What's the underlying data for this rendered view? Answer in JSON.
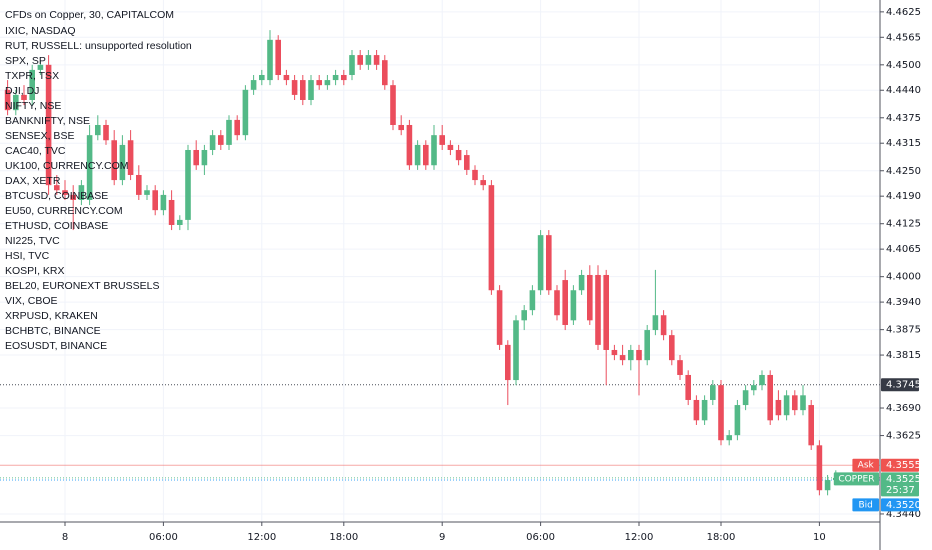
{
  "chart_data": {
    "type": "candlestick",
    "title": "CFDs on Copper, 30, CAPITALCOM",
    "symbols": [
      "IXIC, NASDAQ",
      "RUT, RUSSELL: unsupported resolution",
      "SPX, SP",
      "TXPR, TSX",
      "DJI, DJ",
      "NIFTY, NSE",
      "BANKNIFTY, NSE",
      "SENSEX, BSE",
      "CAC40, TVC",
      "UK100, CURRENCY.COM",
      "DAX, XETR",
      "BTCUSD, COINBASE",
      "EU50, CURRENCY.COM",
      "ETHUSD, COINBASE",
      "NI225, TVC",
      "HSI, TVC",
      "KOSPI, KRX",
      "BEL20, EURONEXT BRUSSELS",
      "VIX, CBOE",
      "XRPUSD, KRAKEN",
      "BCHBTC, BINANCE",
      "EOSUSDT, BINANCE"
    ],
    "categories": [
      null,
      null,
      null,
      null,
      null,
      null,
      null,
      "8",
      null,
      null,
      null,
      null,
      null,
      null,
      null,
      null,
      null,
      null,
      null,
      "06:00",
      null,
      null,
      null,
      null,
      null,
      null,
      null,
      null,
      null,
      null,
      null,
      "12:00",
      null,
      null,
      null,
      null,
      null,
      null,
      null,
      null,
      null,
      "18:00",
      null,
      null,
      null,
      null,
      null,
      null,
      null,
      null,
      null,
      null,
      null,
      "9",
      null,
      null,
      null,
      null,
      null,
      null,
      null,
      null,
      null,
      null,
      null,
      "06:00",
      null,
      null,
      null,
      null,
      null,
      null,
      null,
      null,
      null,
      null,
      null,
      "12:00",
      null,
      null,
      null,
      null,
      null,
      null,
      null,
      null,
      null,
      "18:00",
      null,
      null,
      null,
      null,
      null,
      null,
      null,
      null,
      null,
      null,
      null,
      "10",
      null,
      null
    ],
    "open": [
      4.4441,
      4.4393,
      4.4429,
      4.4417,
      4.4488,
      4.45,
      4.4216,
      4.4204,
      4.4193,
      4.4181,
      4.4181,
      4.4334,
      4.4358,
      4.4322,
      4.4228,
      4.4322,
      4.424,
      4.4193,
      4.4204,
      4.4157,
      4.4181,
      4.4122,
      4.4134,
      4.4299,
      4.4263,
      4.4299,
      4.4334,
      4.4311,
      4.437,
      4.4334,
      4.4441,
      4.4464,
      4.4464,
      4.4559,
      4.4476,
      4.4464,
      4.4464,
      4.4417,
      4.4464,
      4.4452,
      4.4464,
      4.4476,
      4.4476,
      4.4523,
      4.45,
      4.4523,
      4.4511,
      4.4452,
      4.4358,
      4.4358,
      4.4263,
      4.4311,
      4.4263,
      4.4334,
      4.4311,
      4.4299,
      4.4287,
      4.4252,
      4.4228,
      4.4216,
      4.3968,
      4.3839,
      4.3756,
      4.3897,
      4.3921,
      4.3968,
      4.4098,
      4.3968,
      4.3992,
      4.3897,
      4.3968,
      4.4004,
      4.4004,
      4.4004,
      4.3827,
      4.3815,
      4.3803,
      4.3827,
      4.3803,
      4.3874,
      4.3909,
      4.3862,
      4.3803,
      4.3768,
      4.3709,
      4.3661,
      4.3709,
      4.3744,
      4.3614,
      4.3626,
      4.3697,
      4.3732,
      4.3744,
      4.3768,
      4.3709,
      4.3673,
      4.372,
      4.3685,
      4.3697,
      4.3602,
      4.3496,
      4.352
    ],
    "high": [
      4.4464,
      4.4441,
      4.4452,
      4.45,
      4.4511,
      4.4523,
      4.424,
      4.4228,
      4.4216,
      4.4228,
      4.4358,
      4.4381,
      4.437,
      4.4346,
      4.4334,
      4.4346,
      4.4263,
      4.4216,
      4.4216,
      4.4204,
      4.4204,
      4.4145,
      4.4311,
      4.4322,
      4.4311,
      4.4346,
      4.4346,
      4.4381,
      4.4381,
      4.4452,
      4.4476,
      4.4488,
      4.4582,
      4.457,
      4.4488,
      4.4476,
      4.4476,
      4.4476,
      4.4476,
      4.4476,
      4.4488,
      4.4488,
      4.4535,
      4.4535,
      4.4535,
      4.4535,
      4.4523,
      4.4464,
      4.4381,
      4.437,
      4.4322,
      4.4322,
      4.4358,
      4.4358,
      4.4322,
      4.4311,
      4.4299,
      4.4263,
      4.424,
      4.4228,
      4.398,
      4.385,
      4.3909,
      4.3933,
      4.398,
      4.411,
      4.411,
      4.398,
      4.4016,
      4.398,
      4.4016,
      4.4027,
      4.4027,
      4.4016,
      4.3839,
      4.3839,
      4.3839,
      4.3839,
      4.3886,
      4.4016,
      4.3921,
      4.3874,
      4.3815,
      4.3779,
      4.372,
      4.372,
      4.3756,
      4.3756,
      4.3638,
      4.3709,
      4.3744,
      4.3756,
      4.3779,
      4.3779,
      4.3732,
      4.3732,
      4.3732,
      4.3744,
      4.3709,
      4.3614,
      4.3532,
      4.3543
    ],
    "low": [
      4.4381,
      4.4381,
      4.4405,
      4.4405,
      4.4476,
      4.4193,
      4.4193,
      4.4181,
      4.411,
      4.4169,
      4.4169,
      4.4322,
      4.4311,
      4.4216,
      4.4216,
      4.4228,
      4.4181,
      4.4181,
      4.4145,
      4.4145,
      4.411,
      4.411,
      4.411,
      4.4252,
      4.424,
      4.4287,
      4.4299,
      4.4299,
      4.4322,
      4.4322,
      4.4429,
      4.4452,
      4.4452,
      4.4464,
      4.4452,
      4.4417,
      4.4405,
      4.4405,
      4.4441,
      4.4441,
      4.4452,
      4.4452,
      4.4464,
      4.4488,
      4.4488,
      4.4488,
      4.4441,
      4.4346,
      4.4334,
      4.4252,
      4.4252,
      4.4252,
      4.4252,
      4.4299,
      4.4287,
      4.4263,
      4.424,
      4.4216,
      4.4204,
      4.3957,
      4.3827,
      4.3697,
      4.3744,
      4.3874,
      4.3909,
      4.3957,
      4.3957,
      4.3897,
      4.3874,
      4.3886,
      4.3957,
      4.3886,
      4.3827,
      4.3744,
      4.3803,
      4.3791,
      4.3779,
      4.372,
      4.3791,
      4.3862,
      4.385,
      4.3791,
      4.3756,
      4.3697,
      4.365,
      4.365,
      4.3697,
      4.3602,
      4.3602,
      4.3614,
      4.3685,
      4.372,
      4.3732,
      4.365,
      4.3661,
      4.3661,
      4.3673,
      4.3673,
      4.3591,
      4.3484,
      4.3484,
      4.3508
    ],
    "close": [
      4.4393,
      4.4429,
      4.4417,
      4.4488,
      4.45,
      4.4216,
      4.4204,
      4.4193,
      4.4181,
      4.4216,
      4.4334,
      4.4358,
      4.4322,
      4.4228,
      4.4311,
      4.424,
      4.4193,
      4.4204,
      4.4157,
      4.4193,
      4.4122,
      4.4134,
      4.4299,
      4.4263,
      4.4299,
      4.4334,
      4.4311,
      4.437,
      4.4334,
      4.4441,
      4.4464,
      4.4476,
      4.4559,
      4.4476,
      4.4464,
      4.4429,
      4.4417,
      4.4464,
      4.4452,
      4.4464,
      4.4476,
      4.4464,
      4.4523,
      4.45,
      4.4523,
      4.45,
      4.4452,
      4.4358,
      4.4346,
      4.4263,
      4.4311,
      4.4263,
      4.4334,
      4.4311,
      4.4299,
      4.4275,
      4.4252,
      4.4228,
      4.4216,
      4.3968,
      4.3839,
      4.3756,
      4.3897,
      4.3921,
      4.3968,
      4.4098,
      4.3968,
      4.3909,
      4.3886,
      4.3968,
      4.4004,
      4.3897,
      4.3839,
      4.3827,
      4.3815,
      4.3803,
      4.3827,
      4.3803,
      4.3874,
      4.3909,
      4.3862,
      4.3803,
      4.3768,
      4.3709,
      4.3661,
      4.3709,
      4.3744,
      4.3614,
      4.3626,
      4.3697,
      4.3732,
      4.3744,
      4.3768,
      4.3661,
      4.3673,
      4.372,
      4.3685,
      4.372,
      4.3602,
      4.3496,
      4.352,
      4.3525
    ],
    "up_color": "#53b987",
    "down_color": "#eb4d5c",
    "ylim": [
      4.3421,
      4.4653
    ],
    "yticks": [
      {
        "value": 4.4625,
        "label": "4.4625"
      },
      {
        "value": 4.4565,
        "label": "4.4565"
      },
      {
        "value": 4.45,
        "label": "4.4500"
      },
      {
        "value": 4.444,
        "label": "4.4440"
      },
      {
        "value": 4.4375,
        "label": "4.4375"
      },
      {
        "value": 4.4315,
        "label": "4.4315"
      },
      {
        "value": 4.425,
        "label": "4.4250"
      },
      {
        "value": 4.419,
        "label": "4.4190"
      },
      {
        "value": 4.4125,
        "label": "4.4125"
      },
      {
        "value": 4.4065,
        "label": "4.4065"
      },
      {
        "value": 4.4,
        "label": "4.4000"
      },
      {
        "value": 4.394,
        "label": "4.3940"
      },
      {
        "value": 4.3875,
        "label": "4.3875"
      },
      {
        "value": 4.3815,
        "label": "4.3815"
      },
      {
        "value": 4.369,
        "label": "4.3690"
      },
      {
        "value": 4.3625,
        "label": "4.3625"
      },
      {
        "value": 4.344,
        "label": "4.3440"
      }
    ],
    "grid": true,
    "price_lines": [
      {
        "value": 4.3745,
        "value_label": "4.3745",
        "color": "#363a45",
        "style": "dotted"
      },
      {
        "name": "Ask",
        "value": 4.3555,
        "value_label": "4.3555",
        "color": "#ef5350",
        "style": "solid"
      },
      {
        "name": "COPPER",
        "value": 4.3525,
        "value_label": "4.3525",
        "countdown": "25:37",
        "color": "#53b987",
        "style": "dotted"
      },
      {
        "name": "Bid",
        "value": 4.352,
        "value_label": "4.3520",
        "color": "#2196f3",
        "style": "dotted"
      }
    ]
  }
}
